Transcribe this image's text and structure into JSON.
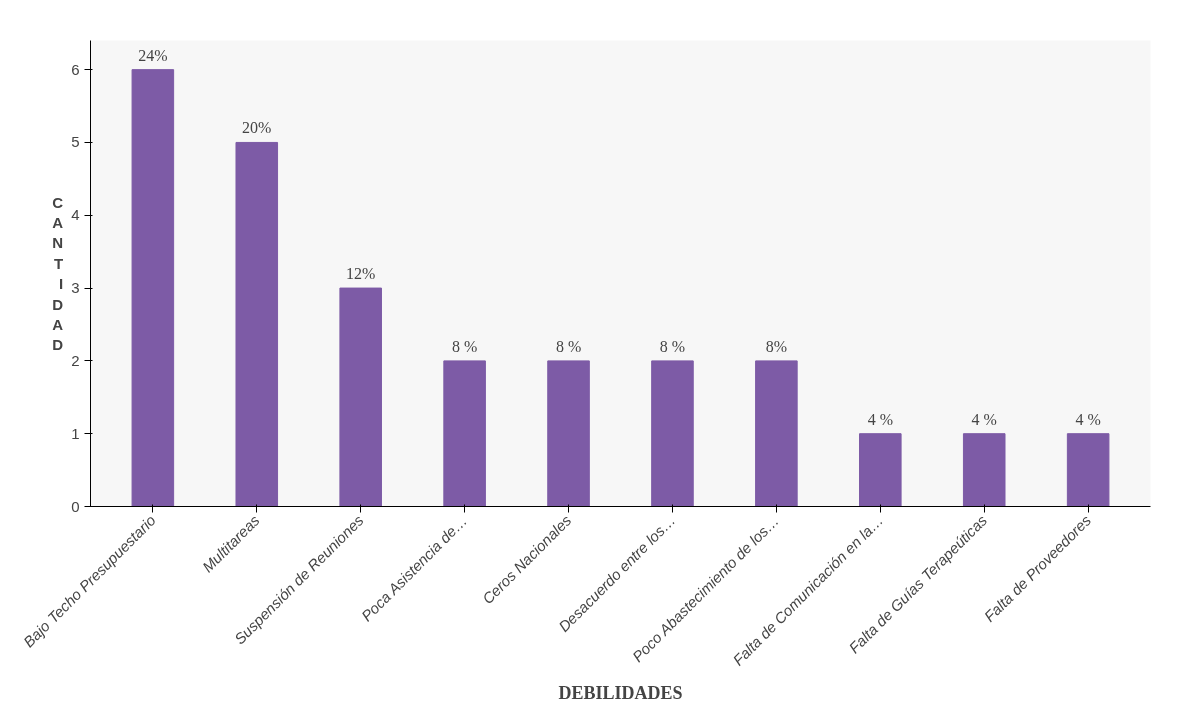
{
  "chart_data": {
    "type": "bar",
    "xlabel": "DEBILIDADES",
    "ylabel": "CANTIDAD",
    "categories": [
      "Bajo Techo Presupuestario",
      "Multitareas",
      "Suspensión de Reuniones",
      "Poca Asistencia de…",
      "Ceros Nacionales",
      "Desacuerdo entre los…",
      "Poco Abastecimiento de los…",
      "Falta de Comunicación en la…",
      "Falta de Guías Terapeúticas",
      "Falta de Proveedores"
    ],
    "values": [
      6,
      5,
      3,
      2,
      2,
      2,
      2,
      1,
      1,
      1
    ],
    "annotations": [
      {
        "text": "24%",
        "x": "Bajo Techo Presupuestario",
        "y": 6
      },
      {
        "text": "20%",
        "x": "Multitareas",
        "y": 5
      },
      {
        "text": "12%",
        "x": "Suspensión de Reuniones",
        "y": 3
      },
      {
        "text": "8 %",
        "x": "Poca Asistencia de…",
        "y": 2
      },
      {
        "text": "8 %",
        "x": "Ceros Nacionales",
        "y": 2
      },
      {
        "text": "8 %",
        "x": "Desacuerdo entre los…",
        "y": 2
      },
      {
        "text": "8%",
        "x": "Poco Abastecimiento de los…",
        "y": 2
      },
      {
        "text": "4 %",
        "x": "Falta de Comunicación en la…",
        "y": 1
      },
      {
        "text": "4 %",
        "x": "Falta de Guías Terapeúticas",
        "y": 1
      },
      {
        "text": "4 %",
        "x": "Falta de Proveedores",
        "y": 1
      }
    ],
    "color": "#7d5ba6",
    "ylim": [
      0,
      6.4
    ],
    "yticks": [
      0,
      1,
      2,
      3,
      4,
      5,
      6
    ],
    "grid": false
  }
}
